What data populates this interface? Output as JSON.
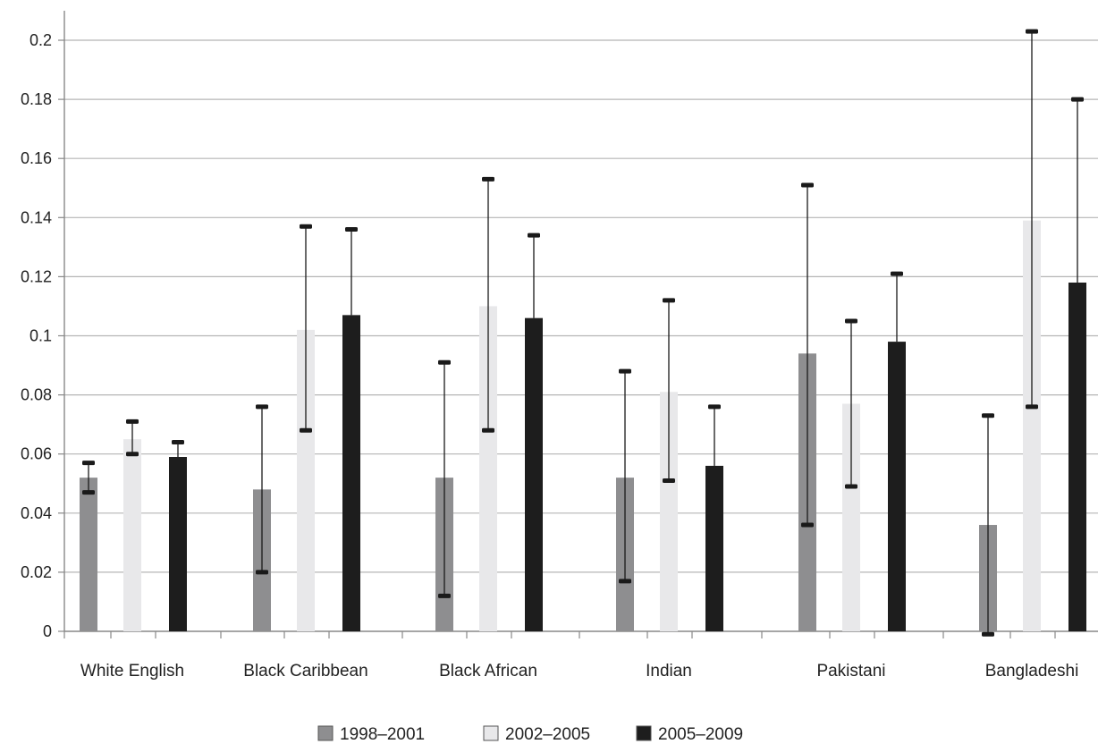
{
  "chart_data": {
    "type": "bar",
    "title": "",
    "xlabel": "",
    "ylabel": "",
    "ylim": [
      0,
      0.2
    ],
    "yticks": [
      "0",
      "0.02",
      "0.04",
      "0.06",
      "0.08",
      "0.1",
      "0.12",
      "0.14",
      "0.16",
      "0.18",
      "0.2"
    ],
    "grid": true,
    "legend_position": "bottom",
    "categories": [
      "White English",
      "Black Caribbean",
      "Black African",
      "Indian",
      "Pakistani",
      "Bangladeshi"
    ],
    "series": [
      {
        "name": "1998–2001",
        "color": "#8e8e90",
        "values": [
          0.052,
          0.048,
          0.052,
          0.052,
          0.094,
          0.036
        ],
        "error_low": [
          0.047,
          0.02,
          0.012,
          0.017,
          0.036,
          -0.001
        ],
        "error_high": [
          0.057,
          0.076,
          0.091,
          0.088,
          0.151,
          0.073
        ]
      },
      {
        "name": "2002–2005",
        "color": "#e8e8ea",
        "values": [
          0.065,
          0.102,
          0.11,
          0.081,
          0.077,
          0.139
        ],
        "error_low": [
          0.06,
          0.068,
          0.068,
          0.051,
          0.049,
          0.076
        ],
        "error_high": [
          0.071,
          0.137,
          0.153,
          0.112,
          0.105,
          0.203
        ]
      },
      {
        "name": "2005–2009",
        "color": "#1d1d1d",
        "values": [
          0.059,
          0.107,
          0.106,
          0.056,
          0.098,
          0.118
        ],
        "error_low": [
          null,
          null,
          null,
          null,
          null,
          null
        ],
        "error_high": [
          0.064,
          0.136,
          0.134,
          0.076,
          0.121,
          0.18
        ]
      }
    ]
  }
}
